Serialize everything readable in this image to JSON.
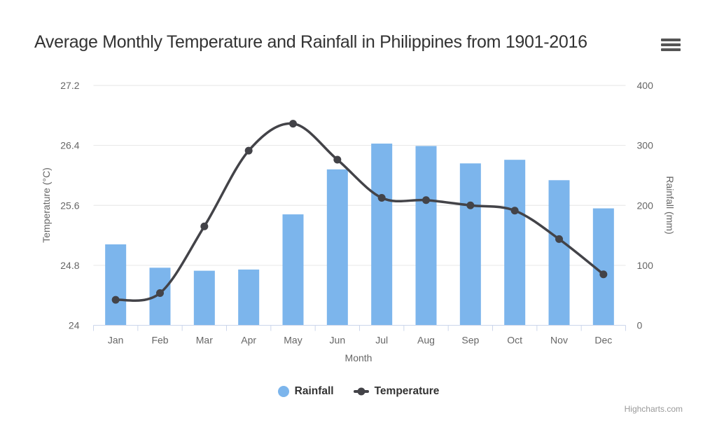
{
  "chart": {
    "background": "#ffffff"
  },
  "chart_data": {
    "type": "combo-column-spline",
    "title": "Average Monthly Temperature and Rainfall in Philippines from 1901-2016",
    "categories": [
      "Jan",
      "Feb",
      "Mar",
      "Apr",
      "May",
      "Jun",
      "Jul",
      "Aug",
      "Sep",
      "Oct",
      "Nov",
      "Dec"
    ],
    "xlabel": "Month",
    "series": [
      {
        "name": "Rainfall",
        "type": "column",
        "axis": "right",
        "color": "#7cb5ec",
        "unit": "mm",
        "values": [
          135,
          96,
          91,
          93,
          185,
          260,
          303,
          299,
          270,
          276,
          242,
          195
        ]
      },
      {
        "name": "Temperature",
        "type": "spline",
        "axis": "left",
        "color": "#434348",
        "unit": "°C",
        "values": [
          24.34,
          24.43,
          25.32,
          26.33,
          26.69,
          26.21,
          25.7,
          25.67,
          25.6,
          25.53,
          25.15,
          24.68
        ]
      }
    ],
    "y_left": {
      "label": "Temperature (°C)",
      "min": 24,
      "max": 27.2,
      "ticks": [
        "24",
        "24.8",
        "25.6",
        "26.4",
        "27.2"
      ]
    },
    "y_right": {
      "label": "Rainfall (mm)",
      "min": 0,
      "max": 400,
      "ticks": [
        "0",
        "100",
        "200",
        "300",
        "400"
      ]
    },
    "legend": {
      "position": "bottom",
      "items": [
        "Rainfall",
        "Temperature"
      ]
    },
    "grid": true,
    "credits": "Highcharts.com"
  },
  "colors": {
    "title": "#333333",
    "axis_labels": "#666666",
    "grid": "#e6e6e6",
    "axis_line": "#ccd6eb",
    "legend_text": "#333333",
    "credits": "#999999",
    "menu_icon": "#555555"
  }
}
